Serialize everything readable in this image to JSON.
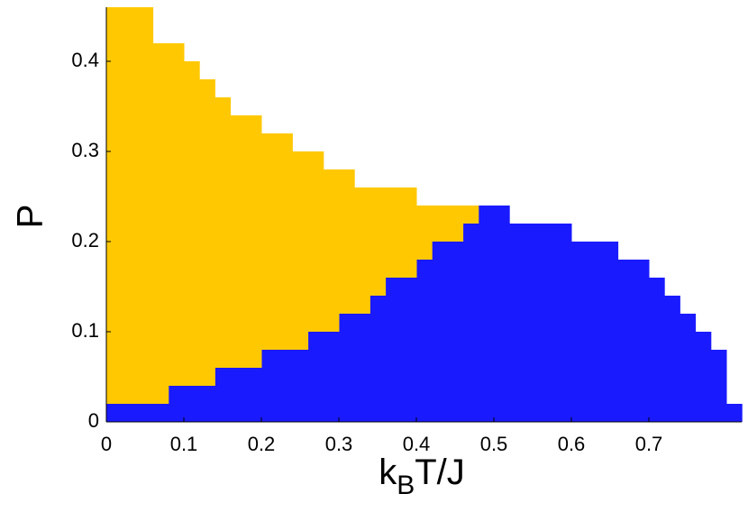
{
  "chart_data": {
    "type": "stacked-histogram",
    "xlabel": [
      "k",
      "B",
      "T/J"
    ],
    "ylabel": "P",
    "bins": [
      0,
      0.02,
      0.04,
      0.06,
      0.08,
      0.1,
      0.12,
      0.14,
      0.16,
      0.18,
      0.2,
      0.22,
      0.24,
      0.26,
      0.28,
      0.3,
      0.32,
      0.34,
      0.36,
      0.38,
      0.4,
      0.42,
      0.44,
      0.46,
      0.48,
      0.5,
      0.52,
      0.54,
      0.56,
      0.58,
      0.6,
      0.62,
      0.64,
      0.66,
      0.68,
      0.7,
      0.72,
      0.74,
      0.76,
      0.78,
      0.8,
      0.82
    ],
    "series": [
      {
        "color": "#1a1aff",
        "values": [
          0.02,
          0.02,
          0.02,
          0.02,
          0.04,
          0.04,
          0.04,
          0.06,
          0.06,
          0.06,
          0.08,
          0.08,
          0.08,
          0.1,
          0.1,
          0.12,
          0.12,
          0.14,
          0.16,
          0.16,
          0.18,
          0.2,
          0.2,
          0.22,
          0.24,
          0.24,
          0.22,
          0.22,
          0.22,
          0.22,
          0.2,
          0.2,
          0.2,
          0.18,
          0.18,
          0.16,
          0.14,
          0.12,
          0.1,
          0.08,
          0.02
        ]
      },
      {
        "color": "#ffc800",
        "values": [
          0.44,
          0.44,
          0.44,
          0.4,
          0.38,
          0.36,
          0.34,
          0.3,
          0.28,
          0.28,
          0.24,
          0.24,
          0.22,
          0.2,
          0.18,
          0.16,
          0.14,
          0.12,
          0.1,
          0.1,
          0.06,
          0.04,
          0.04,
          0.02,
          0,
          0,
          0,
          0,
          0,
          0,
          0,
          0,
          0,
          0,
          0,
          0,
          0,
          0,
          0,
          0,
          0
        ]
      }
    ],
    "xlim": [
      0,
      0.82
    ],
    "ylim": [
      0,
      0.46
    ],
    "xticks": [
      0,
      0.1,
      0.2,
      0.3,
      0.4,
      0.5,
      0.6,
      0.7
    ],
    "yticks": [
      0,
      0.1,
      0.2,
      0.3,
      0.4
    ]
  }
}
